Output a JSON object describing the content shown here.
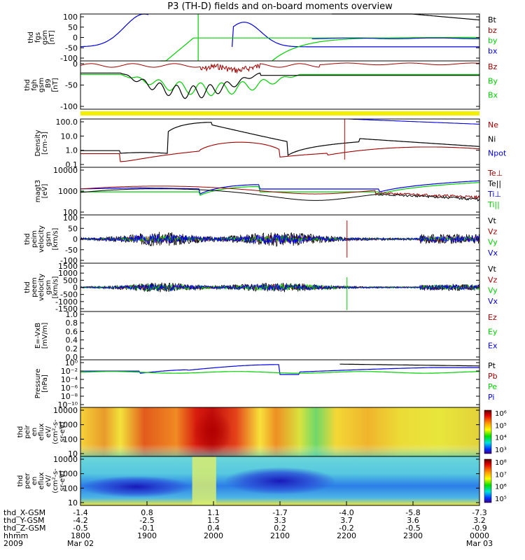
{
  "title": "P3 (TH-D) fields and on-board moments overview",
  "colors": {
    "black": "#000000",
    "red": "#cc0000",
    "dred": "#a00000",
    "green": "#00d000",
    "blue": "#0000e0",
    "yellow": "#f0f000"
  },
  "chart_data": [
    {
      "id": "fgs",
      "type": "line",
      "ylabel": [
        "thd",
        "fgs",
        "gsm",
        "[nT]"
      ],
      "ylim": [
        -100,
        100
      ],
      "yticks": [
        "100",
        "50",
        "0",
        "-50",
        "-100"
      ],
      "legend": [
        {
          "text": "Bt",
          "color": "black"
        },
        {
          "text": "bz",
          "color": "dred"
        },
        {
          "text": "by",
          "color": "green"
        },
        {
          "text": "bx",
          "color": "blue"
        }
      ]
    },
    {
      "id": "fgh",
      "type": "line",
      "ylabel": [
        "thd",
        "fgh",
        "gsm",
        "_B9",
        "[nT]"
      ],
      "ylim": [
        -120,
        40
      ],
      "yticks": [
        "0",
        "-50",
        "-100"
      ],
      "legend": [
        {
          "text": "Bz",
          "color": "dred"
        },
        {
          "text": "By",
          "color": "green"
        },
        {
          "text": "Bx",
          "color": "green"
        }
      ]
    },
    {
      "id": "flag",
      "type": "bar",
      "ylabel": [],
      "legend": []
    },
    {
      "id": "density",
      "type": "line",
      "ylabel": [
        "Density",
        "[cm-3]"
      ],
      "yscale": "log",
      "yticks": [
        "100.0",
        "10.0",
        "1.0",
        "0.1"
      ],
      "legend": [
        {
          "text": "Ne",
          "color": "dred"
        },
        {
          "text": "Ni",
          "color": "black"
        },
        {
          "text": "Npot",
          "color": "blue"
        }
      ]
    },
    {
      "id": "temp",
      "type": "line",
      "ylabel": [
        "magt3",
        "[eV]"
      ],
      "yscale": "log",
      "yticks": [
        "10000",
        "1000",
        "100"
      ],
      "legend": [
        {
          "text": "Te⊥",
          "color": "dred"
        },
        {
          "text": "Te||",
          "color": "black"
        },
        {
          "text": "Ti⊥",
          "color": "blue"
        },
        {
          "text": "Ti||",
          "color": "green"
        }
      ]
    },
    {
      "id": "peim",
      "type": "line",
      "ylabel": [
        "thd",
        "peim",
        "velocity",
        "gsm",
        "[km/s]"
      ],
      "ylim": [
        -100,
        100
      ],
      "yticks": [
        "100",
        "50",
        "0",
        "-50",
        "-100"
      ],
      "legend": [
        {
          "text": "Vt",
          "color": "black"
        },
        {
          "text": "Vz",
          "color": "dred"
        },
        {
          "text": "Vy",
          "color": "green"
        },
        {
          "text": "Vx",
          "color": "blue"
        }
      ]
    },
    {
      "id": "peem",
      "type": "line",
      "ylabel": [
        "thd",
        "peem",
        "velocity",
        "gsm",
        "[km/s]"
      ],
      "ylim": [
        -1500,
        1500
      ],
      "yticks": [
        "1500",
        "1000",
        "500",
        "0",
        "-500",
        "-1000",
        "-1500"
      ],
      "legend": [
        {
          "text": "Vt",
          "color": "black"
        },
        {
          "text": "Vz",
          "color": "dred"
        },
        {
          "text": "Vy",
          "color": "green"
        },
        {
          "text": "Vx",
          "color": "blue"
        }
      ]
    },
    {
      "id": "efield",
      "type": "line",
      "ylabel": [
        "E=-VxB",
        "[mV/m]"
      ],
      "ylim": [
        0,
        1
      ],
      "yticks": [
        "1.0",
        "0.8",
        "0.6",
        "0.4",
        "0.2",
        "0.0"
      ],
      "legend": [
        {
          "text": "Ez",
          "color": "dred"
        },
        {
          "text": "Ey",
          "color": "green"
        },
        {
          "text": "Ex",
          "color": "blue"
        }
      ]
    },
    {
      "id": "pressure",
      "type": "line",
      "ylabel": [
        "Pressure",
        "[nPa]"
      ],
      "yscale": "log",
      "yticks": [
        "10⁰",
        "10⁻²",
        "10⁻⁴",
        "10⁻⁶",
        "10⁻⁸",
        "10⁻¹⁰"
      ],
      "legend": [
        {
          "text": "Pt",
          "color": "black"
        },
        {
          "text": "Pb",
          "color": "dred"
        },
        {
          "text": "Pe",
          "color": "green"
        },
        {
          "text": "Pi",
          "color": "blue"
        }
      ]
    },
    {
      "id": "peir",
      "type": "heatmap",
      "ylabel": [
        "thd",
        "peir",
        "en",
        "eflux",
        "eV/",
        "(cm²-s-",
        "sr-eV)"
      ],
      "yticks": [
        "10000",
        "1000",
        "100",
        "10"
      ],
      "colorbar": [
        "10⁶",
        "10⁵",
        "10⁴",
        "10³"
      ]
    },
    {
      "id": "peer",
      "type": "heatmap",
      "ylabel": [
        "thd",
        "peer",
        "en",
        "eflux",
        "eV/",
        "(cm²-s-",
        "sr-eV)"
      ],
      "yticks": [
        "10000",
        "1000",
        "100",
        "10"
      ],
      "colorbar": [
        "10⁸",
        "10⁷",
        "10⁶",
        "10⁵"
      ]
    }
  ],
  "xaxis": {
    "rows": [
      {
        "label": "thd_X-GSM",
        "values": [
          "-1.4",
          "0.8",
          "1.1",
          "-1.7",
          "-4.0",
          "-5.8",
          "-7.3"
        ]
      },
      {
        "label": "thd_Y-GSM",
        "values": [
          "-4.2",
          "-2.5",
          "1.5",
          "3.3",
          "3.7",
          "3.6",
          "3.2"
        ]
      },
      {
        "label": "thd_Z-GSM",
        "values": [
          "-0.5",
          "-0.1",
          "0.4",
          "0.2",
          "-0.2",
          "-0.5",
          "-0.9"
        ]
      },
      {
        "label": "hhmm",
        "values": [
          "1800",
          "1900",
          "2000",
          "2100",
          "2200",
          "2300",
          "0000"
        ]
      },
      {
        "label": "2009",
        "values": [
          "Mar 02",
          "",
          "",
          "",
          "",
          "",
          "Mar 03"
        ]
      }
    ]
  }
}
